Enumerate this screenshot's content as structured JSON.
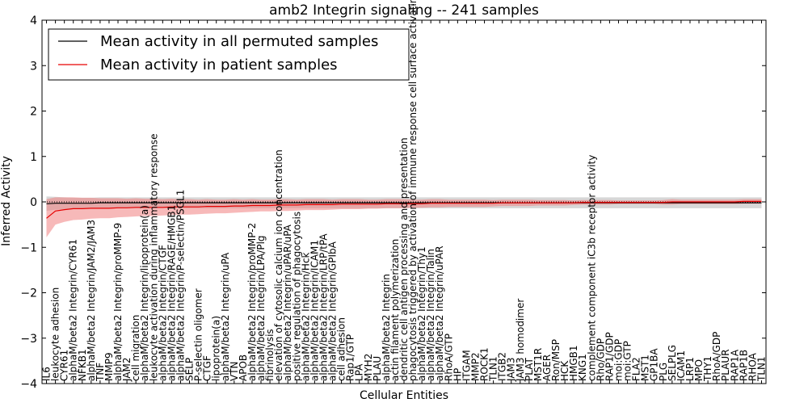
{
  "chart_data": {
    "type": "line",
    "title": "amb2 Integrin signaling -- 241 samples",
    "xlabel": "Cellular Entities",
    "ylabel": "Inferred Activity",
    "ylim": [
      -4,
      4
    ],
    "yticks": [
      -4,
      -3,
      -2,
      -1,
      0,
      1,
      2,
      3,
      4
    ],
    "grid": false,
    "legend_position": "top-left",
    "categories": [
      "IL6",
      "leukocyte adhesion",
      "CYR61",
      "alphaM/beta2 Integrin/CYR61",
      "NFKB1",
      "alphaM/beta2 Integrin/JAM2/JAM3",
      "TNF",
      "MMP9",
      "alphaM/beta2 Integrin/proMMP-9",
      "JAM2",
      "cell migration",
      "alphaM/beta2 Integrin/lipoprotein(a)",
      "leukocyte activation during inflammatory response",
      "alphaM/beta2 Integrin/CTGF",
      "alphaM/beta2 Integrin/RAGE/HMGB1",
      "alphaM/beta2 Integrin/P-selectin/PSGL1",
      "SELP",
      "P-selectin oligomer",
      "CTGF",
      "lipoprotein(a)",
      "alphaM/beta2 Integrin/uPA",
      "VTN",
      "APOB",
      "alphaM/beta2 Integrin/proMMP-2",
      "alphaM/beta2 Integrin/LPA/Plg",
      "fibrinolysis",
      "elevation of cytosolic calcium ion concentration",
      "alphaM/beta2 Integrin/uPAR/uPA",
      "positive regulation of phagocytosis",
      "alphaM/beta2 Integrin/Hck",
      "alphaM/beta2 Integrin/ICAM1",
      "alphaM/beta2 Integrin/LRP/tPA",
      "alphaM/beta2 Integrin/GPIbA",
      "cell adhesion",
      "Rap1/GTP",
      "LPA",
      "MYH2",
      "PLAU",
      "alphaM/beta2 Integrin",
      "actin filament polymerization",
      "dendritic cell antigen processing and presentation",
      "phagocytosis triggered by activation of immune response cell surface activating receptor",
      "alphaM/beta2 Integrin/Thy1",
      "alphaM/beta2 Integrin/Talin",
      "alphaM/beta2 Integrin/uPAR",
      "RhoA/GTP",
      "HP",
      "ITGAM",
      "MMP2",
      "ROCK1",
      "TLN1",
      "ITGB2",
      "JAM3",
      "JAM3 homodimer",
      "PLAT",
      "MST1R",
      "AGER",
      "Ron/MSP",
      "HCK",
      "HMGB1",
      "KNG1",
      "complement component iC3b receptor activity",
      "Rho/GDP",
      "RAP1/GDP",
      "moi:GDP",
      "moi:GTP",
      "FLA2",
      "MST1",
      "GP1BA",
      "PLG",
      "SELPLG",
      "ICAM1",
      "LRP1",
      "MPO",
      "THY1",
      "RhoA/GDP",
      "PLAUR",
      "RAP1A",
      "RAP1B",
      "RHOA",
      "TLN1"
    ],
    "series": [
      {
        "name": "Mean activity in all permuted samples",
        "color": "#000000",
        "band_color": "#bdbdbd",
        "values": [
          -0.04,
          -0.03,
          -0.03,
          -0.03,
          -0.03,
          -0.03,
          -0.02,
          -0.02,
          -0.02,
          -0.02,
          -0.02,
          -0.02,
          -0.02,
          -0.02,
          -0.02,
          -0.02,
          -0.02,
          -0.02,
          -0.02,
          -0.02,
          -0.02,
          -0.02,
          -0.02,
          -0.02,
          -0.02,
          -0.02,
          -0.02,
          -0.02,
          -0.02,
          -0.02,
          -0.02,
          -0.02,
          -0.02,
          -0.02,
          -0.02,
          -0.02,
          -0.02,
          -0.02,
          -0.02,
          -0.02,
          -0.02,
          -0.02,
          -0.02,
          -0.02,
          -0.02,
          -0.02,
          -0.02,
          -0.02,
          -0.02,
          -0.02,
          -0.02,
          -0.02,
          -0.02,
          -0.02,
          -0.02,
          -0.02,
          -0.02,
          -0.02,
          -0.02,
          -0.02,
          -0.02,
          -0.02,
          -0.02,
          -0.02,
          -0.02,
          -0.02,
          -0.02,
          -0.02,
          -0.02,
          -0.02,
          -0.02,
          -0.02,
          -0.02,
          -0.02,
          -0.02,
          -0.02,
          -0.02,
          -0.02,
          -0.02,
          -0.02,
          -0.02
        ],
        "spread": [
          0.16,
          0.14,
          0.13,
          0.12,
          0.12,
          0.12,
          0.12,
          0.12,
          0.12,
          0.12,
          0.12,
          0.12,
          0.12,
          0.12,
          0.12,
          0.12,
          0.12,
          0.12,
          0.12,
          0.12,
          0.12,
          0.12,
          0.12,
          0.12,
          0.12,
          0.12,
          0.12,
          0.12,
          0.12,
          0.12,
          0.12,
          0.12,
          0.12,
          0.12,
          0.12,
          0.12,
          0.12,
          0.12,
          0.12,
          0.12,
          0.12,
          0.12,
          0.12,
          0.12,
          0.12,
          0.12,
          0.12,
          0.12,
          0.12,
          0.12,
          0.12,
          0.12,
          0.12,
          0.12,
          0.12,
          0.12,
          0.12,
          0.12,
          0.12,
          0.12,
          0.12,
          0.12,
          0.12,
          0.12,
          0.12,
          0.12,
          0.12,
          0.12,
          0.12,
          0.12,
          0.12,
          0.12,
          0.12,
          0.12,
          0.12,
          0.12,
          0.12,
          0.12,
          0.12,
          0.12,
          0.12
        ]
      },
      {
        "name": "Mean activity in patient samples",
        "color": "#e60000",
        "band_color": "#f08080",
        "values": [
          -0.36,
          -0.2,
          -0.17,
          -0.15,
          -0.15,
          -0.14,
          -0.14,
          -0.14,
          -0.13,
          -0.13,
          -0.12,
          -0.12,
          -0.12,
          -0.12,
          -0.11,
          -0.11,
          -0.11,
          -0.11,
          -0.1,
          -0.1,
          -0.1,
          -0.09,
          -0.09,
          -0.08,
          -0.08,
          -0.08,
          -0.07,
          -0.07,
          -0.07,
          -0.06,
          -0.06,
          -0.06,
          -0.06,
          -0.05,
          -0.05,
          -0.05,
          -0.05,
          -0.05,
          -0.04,
          -0.04,
          -0.04,
          -0.04,
          -0.04,
          -0.03,
          -0.03,
          -0.03,
          -0.03,
          -0.03,
          -0.03,
          -0.03,
          -0.03,
          -0.02,
          -0.02,
          -0.02,
          -0.02,
          -0.02,
          -0.02,
          -0.02,
          -0.02,
          -0.02,
          -0.01,
          -0.01,
          -0.01,
          -0.01,
          -0.01,
          -0.01,
          -0.01,
          -0.01,
          -0.01,
          -0.01,
          0,
          0,
          0,
          0,
          0,
          0,
          0,
          0,
          0.01,
          0.01,
          0.01
        ],
        "spread": [
          0.42,
          0.3,
          0.27,
          0.25,
          0.24,
          0.23,
          0.22,
          0.22,
          0.21,
          0.2,
          0.2,
          0.19,
          0.19,
          0.18,
          0.18,
          0.17,
          0.17,
          0.16,
          0.16,
          0.15,
          0.15,
          0.15,
          0.14,
          0.14,
          0.13,
          0.13,
          0.13,
          0.13,
          0.12,
          0.12,
          0.12,
          0.12,
          0.11,
          0.11,
          0.11,
          0.11,
          0.1,
          0.1,
          0.1,
          0.1,
          0.1,
          0.09,
          0.09,
          0.09,
          0.09,
          0.08,
          0.08,
          0.08,
          0.08,
          0.08,
          0.07,
          0.07,
          0.07,
          0.07,
          0.07,
          0.06,
          0.06,
          0.06,
          0.06,
          0.05,
          0.05,
          0.05,
          0.05,
          0.05,
          0.04,
          0.04,
          0.04,
          0.04,
          0.04,
          0.05,
          0.06,
          0.05,
          0.05,
          0.05,
          0.05,
          0.05,
          0.05,
          0.05,
          0.05,
          0.05,
          0.05
        ]
      }
    ]
  }
}
